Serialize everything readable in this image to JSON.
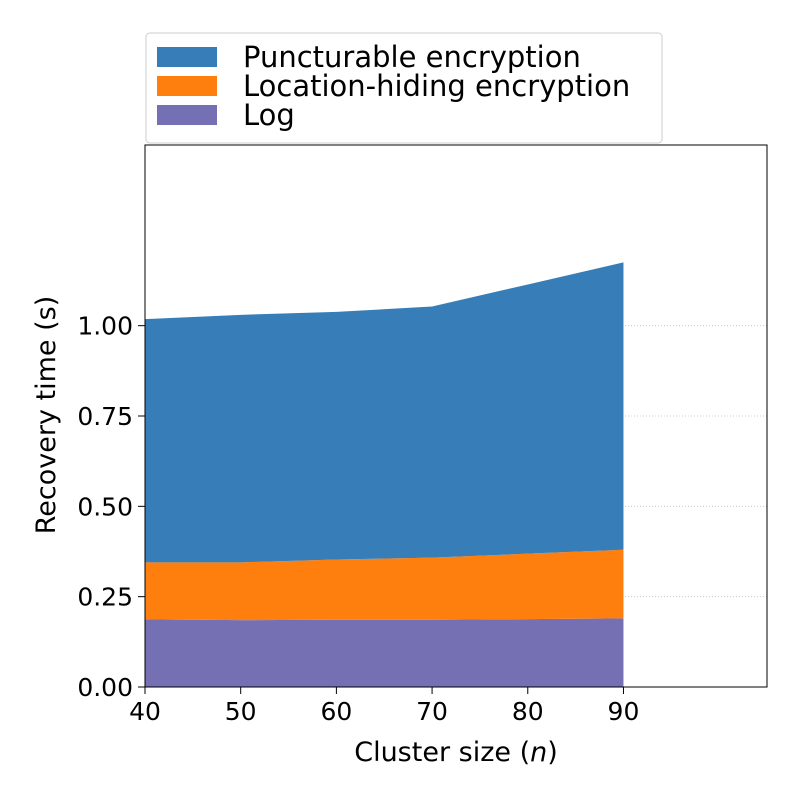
{
  "chart_data": {
    "type": "area",
    "stacked": true,
    "x": [
      40,
      50,
      60,
      70,
      80,
      90
    ],
    "series": [
      {
        "name": "Log",
        "color": "#7570b3",
        "values": [
          0.187,
          0.185,
          0.186,
          0.186,
          0.188,
          0.19
        ]
      },
      {
        "name": "Location-hiding encryption",
        "color": "#ff7f0e",
        "values": [
          0.158,
          0.16,
          0.167,
          0.172,
          0.181,
          0.19
        ]
      },
      {
        "name": "Puncturable encryption",
        "color": "#377eb8",
        "values": [
          0.673,
          0.685,
          0.685,
          0.695,
          0.745,
          0.795
        ]
      }
    ],
    "legend_order": [
      "Puncturable encryption",
      "Location-hiding encryption",
      "Log"
    ],
    "xlabel_prefix": "Cluster size (",
    "xlabel_var": "n",
    "xlabel_suffix": ")",
    "ylabel": "Recovery time (s)",
    "xlim": [
      40,
      105
    ],
    "ylim": [
      0,
      1.5
    ],
    "xticks": [
      40,
      50,
      60,
      70,
      80,
      90
    ],
    "yticks": [
      0,
      0.25,
      0.5,
      0.75,
      1.0
    ],
    "ytick_labels": [
      "0.00",
      "0.25",
      "0.50",
      "0.75",
      "1.00"
    ],
    "grid": "y-dotted",
    "legend_position": "top-center-outside"
  }
}
